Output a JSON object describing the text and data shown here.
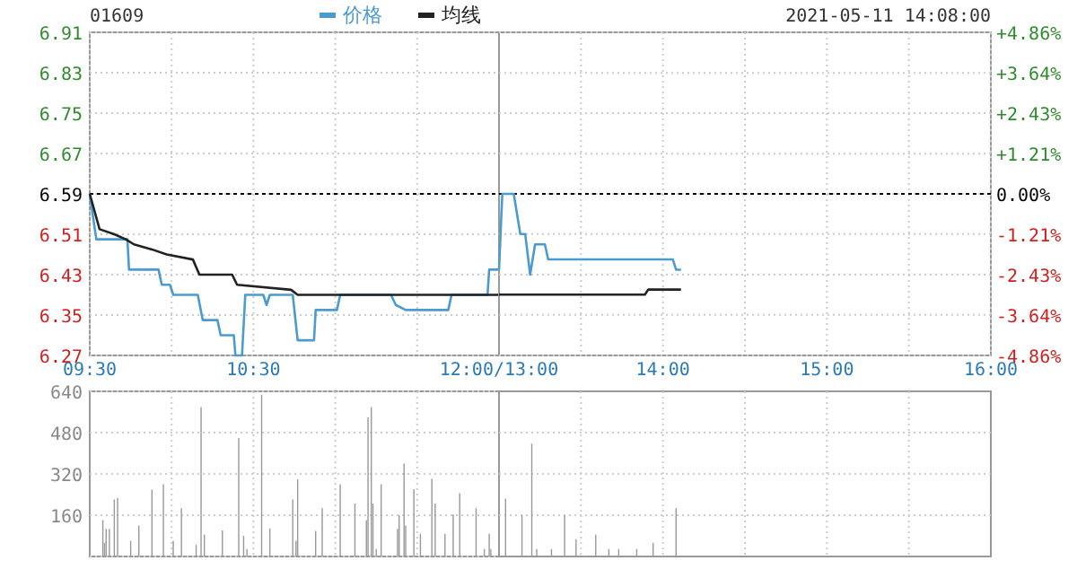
{
  "chart_data": [
    {
      "type": "line",
      "title": "01609",
      "legend": "top right",
      "grid": true,
      "tick_labels": "xy",
      "xlim": [
        9.5,
        12
      ],
      "xticks": [
        {
          "value": 9.5,
          "label": "09:30"
        },
        {
          "value": 10,
          "label": null
        },
        {
          "value": 10.5,
          "label": "10:30"
        },
        {
          "value": 11,
          "label": null
        },
        {
          "value": 11.5,
          "label": null
        },
        {
          "value": 12,
          "label": "12:00/13:00"
        }
      ],
      "ylim": [
        6.27,
        6.91
      ],
      "yticks": [
        6.27,
        6.35,
        6.43,
        6.51,
        6.59,
        6.67,
        6.75,
        6.83,
        6.91
      ],
      "ref_lines": [
        {
          "axis": "y",
          "value": 6.59,
          "label": null,
          "color": "#000000",
          "line_style": "dashed"
        }
      ],
      "series": [
        {
          "name": "价格",
          "color": "#4b9bd1",
          "x": [
            9.5,
            9.54,
            9.73,
            9.74,
            9.92,
            9.94,
            9.99,
            10.01,
            10.16,
            10.19,
            10.28,
            10.3,
            10.38,
            10.39,
            10.43,
            10.45,
            10.56,
            10.58,
            10.6,
            10.74,
            10.77,
            10.87,
            10.88,
            11.01,
            11.03,
            11.34,
            11.37,
            11.43,
            11.69,
            11.71,
            11.93,
            11.94,
            12.0
          ],
          "values": [
            6.59,
            6.5,
            6.5,
            6.44,
            6.44,
            6.41,
            6.41,
            6.39,
            6.39,
            6.34,
            6.34,
            6.31,
            6.31,
            6.27,
            6.27,
            6.39,
            6.39,
            6.37,
            6.39,
            6.39,
            6.3,
            6.3,
            6.36,
            6.36,
            6.39,
            6.39,
            6.37,
            6.36,
            6.36,
            6.39,
            6.39,
            6.44,
            6.44
          ]
        },
        {
          "name": "均线",
          "color": "#222222",
          "x": [
            9.5,
            9.56,
            9.65,
            9.72,
            9.77,
            9.88,
            9.97,
            10.13,
            10.17,
            10.37,
            10.4,
            10.73,
            10.77,
            12.0
          ],
          "values": [
            6.59,
            6.52,
            6.51,
            6.5,
            6.49,
            6.48,
            6.47,
            6.46,
            6.43,
            6.43,
            6.41,
            6.4,
            6.39,
            6.39
          ]
        }
      ]
    },
    {
      "type": "line",
      "annotations": [
        "2021-05-11 14:08:00"
      ],
      "grid": true,
      "tick_labels": "xy2",
      "xlim": [
        13,
        16
      ],
      "xticks": [
        {
          "value": 13.5,
          "label": null
        },
        {
          "value": 14,
          "label": "14:00"
        },
        {
          "value": 14.5,
          "label": null
        },
        {
          "value": 15,
          "label": "15:00"
        },
        {
          "value": 15.5,
          "label": null
        },
        {
          "value": 16,
          "label": "16:00"
        }
      ],
      "y2lim": [
        -4.86,
        4.86
      ],
      "y2ticks": [
        {
          "value": -4.86,
          "label": "-4.86%"
        },
        {
          "value": -3.64,
          "label": "-3.64%"
        },
        {
          "value": -2.43,
          "label": "-2.43%"
        },
        {
          "value": -1.21,
          "label": "-1.21%"
        },
        {
          "value": 0,
          "label": "0.00%"
        },
        {
          "value": 1.21,
          "label": "+1.21%"
        },
        {
          "value": 2.43,
          "label": "+2.43%"
        },
        {
          "value": 3.64,
          "label": "+3.64%"
        },
        {
          "value": 4.86,
          "label": "+4.86%"
        }
      ],
      "ref_lines": [
        {
          "axis": "y2",
          "value": 0,
          "label": null,
          "color": "#000000",
          "line_style": "dashed"
        }
      ],
      "series": [
        {
          "color": "#4b9bd1",
          "axis": "y2",
          "x": [
            13.0,
            13.02,
            13.09,
            13.13,
            13.16,
            13.19,
            13.22,
            13.28,
            13.3,
            14.06,
            14.08,
            14.11
          ],
          "values": [
            -2.28,
            0,
            0,
            -1.21,
            -1.21,
            -2.43,
            -1.52,
            -1.52,
            -1.97,
            -1.97,
            -2.28,
            -2.28
          ]
        },
        {
          "color": "#222222",
          "axis": "y2",
          "x": [
            13.0,
            13.89,
            13.91,
            14.11
          ],
          "values": [
            -3.03,
            -3.03,
            -2.88,
            -2.88
          ]
        }
      ]
    },
    {
      "type": "bar",
      "grid": true,
      "tick_labels": "y",
      "xlim": [
        9.5,
        12
      ],
      "xticks": [
        {
          "value": 10,
          "label": null
        },
        {
          "value": 10.5,
          "label": null
        },
        {
          "value": 11,
          "label": null
        },
        {
          "value": 11.5,
          "label": null
        }
      ],
      "ylim": [
        0,
        640
      ],
      "yticks": [
        {
          "value": 0,
          "label": null
        },
        160,
        320,
        480,
        640
      ],
      "series": [
        {
          "color": "#999999",
          "x": [
            9.58,
            9.59,
            9.6,
            9.62,
            9.65,
            9.67,
            9.75,
            9.8,
            9.88,
            9.95,
            10.01,
            10.06,
            10.15,
            10.18,
            10.2,
            10.31,
            10.41,
            10.44,
            10.46,
            10.55,
            10.6,
            10.74,
            10.76,
            10.77,
            10.88,
            10.92,
            11.03,
            11.12,
            11.19,
            11.2,
            11.22,
            11.23,
            11.25,
            11.28,
            11.38,
            11.39,
            11.42,
            11.43,
            11.48,
            11.52,
            11.59,
            11.61,
            11.67,
            11.72,
            11.76,
            11.86,
            11.91,
            11.94,
            11.95
          ],
          "values": [
            141,
            53,
            107,
            107,
            221,
            227,
            61,
            120,
            259,
            280,
            61,
            187,
            45,
            579,
            85,
            101,
            459,
            80,
            29,
            627,
            109,
            221,
            61,
            299,
            99,
            187,
            280,
            205,
            141,
            539,
            579,
            205,
            29,
            280,
            107,
            160,
            360,
            120,
            261,
            88,
            301,
            205,
            88,
            163,
            245,
            187,
            29,
            88,
            29
          ]
        }
      ]
    },
    {
      "type": "bar",
      "grid": true,
      "tick_labels": false,
      "xlim": [
        13,
        16
      ],
      "xticks": [
        {
          "value": 13.5,
          "label": null
        },
        {
          "value": 14,
          "label": null
        },
        {
          "value": 14.5,
          "label": null
        },
        {
          "value": 15,
          "label": null
        },
        {
          "value": 15.5,
          "label": null
        }
      ],
      "ylim": [
        0,
        640
      ],
      "yticks": [
        {
          "value": 160,
          "label": null
        },
        {
          "value": 320,
          "label": null
        },
        {
          "value": 480,
          "label": null
        }
      ],
      "series": [
        {
          "color": "#999999",
          "x": [
            13.04,
            13.14,
            13.2,
            13.23,
            13.32,
            13.4,
            13.47,
            13.59,
            13.67,
            13.73,
            13.84,
            13.94,
            14.08
          ],
          "values": [
            224,
            160,
            437,
            29,
            29,
            160,
            67,
            85,
            29,
            29,
            29,
            53,
            187
          ]
        }
      ]
    }
  ]
}
